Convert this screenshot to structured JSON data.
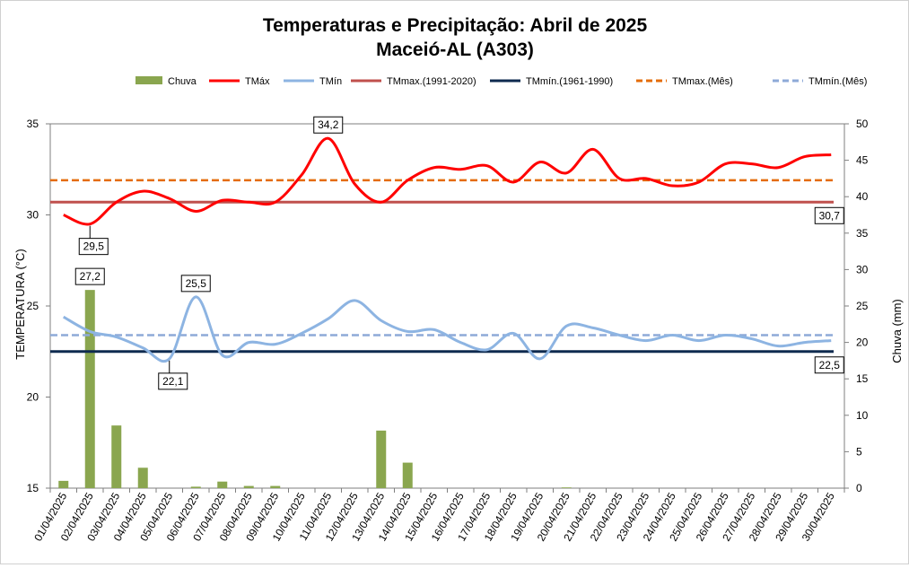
{
  "chart_data": {
    "type": "bar+line",
    "title": "Temperaturas e Precipitação: Abril de 2025",
    "subtitle": "Maceió-AL (A303)",
    "ylabel": "TEMPERATURA (°C)",
    "y2label": "Chuva (mm)",
    "ylim": [
      15,
      35
    ],
    "y_ticks": [
      "15",
      "20",
      "25",
      "30",
      "35"
    ],
    "y2lim": [
      0,
      50
    ],
    "y2_ticks": [
      "0",
      "5",
      "10",
      "15",
      "20",
      "25",
      "30",
      "35",
      "40",
      "45",
      "50"
    ],
    "grid": false,
    "legend_position": "top",
    "categories": [
      "01/04/2025",
      "02/04/2025",
      "03/04/2025",
      "04/04/2025",
      "05/04/2025",
      "06/04/2025",
      "07/04/2025",
      "08/04/2025",
      "09/04/2025",
      "10/04/2025",
      "11/04/2025",
      "12/04/2025",
      "13/04/2025",
      "14/04/2025",
      "15/04/2025",
      "16/04/2025",
      "17/04/2025",
      "18/04/2025",
      "19/04/2025",
      "20/04/2025",
      "21/04/2025",
      "22/04/2025",
      "23/04/2025",
      "24/04/2025",
      "25/04/2025",
      "26/04/2025",
      "27/04/2025",
      "28/04/2025",
      "29/04/2025",
      "30/04/2025"
    ],
    "series": [
      {
        "name": "Chuva",
        "type": "bar",
        "axis": "right",
        "color": "#8aa64f",
        "values": [
          1.0,
          27.2,
          8.6,
          2.8,
          0,
          0.2,
          0.9,
          0.3,
          0.3,
          0,
          0,
          0,
          7.9,
          3.5,
          0,
          0,
          0,
          0,
          0,
          0.1,
          0,
          0,
          0,
          0,
          0,
          0,
          0,
          0,
          0,
          0
        ]
      },
      {
        "name": "TMáx",
        "type": "line",
        "axis": "left",
        "color": "#ff0000",
        "values": [
          30.0,
          29.5,
          30.7,
          31.3,
          30.9,
          30.2,
          30.8,
          30.7,
          30.7,
          32.2,
          34.2,
          31.7,
          30.7,
          31.9,
          32.6,
          32.5,
          32.7,
          31.8,
          32.9,
          32.3,
          33.6,
          32.0,
          32.0,
          31.6,
          31.8,
          32.8,
          32.8,
          32.6,
          33.2,
          33.3
        ]
      },
      {
        "name": "TMín",
        "type": "line",
        "axis": "left",
        "color": "#8db4e2",
        "values": [
          24.4,
          23.6,
          23.3,
          22.7,
          22.1,
          25.5,
          22.3,
          23.0,
          22.9,
          23.5,
          24.3,
          25.3,
          24.2,
          23.6,
          23.7,
          23.0,
          22.6,
          23.5,
          22.1,
          23.9,
          23.8,
          23.4,
          23.1,
          23.4,
          23.1,
          23.4,
          23.2,
          22.8,
          23.0,
          23.1
        ]
      },
      {
        "name": "TMmax.(1991-2020)",
        "type": "hline",
        "axis": "left",
        "color": "#c0504d",
        "value": 30.7
      },
      {
        "name": "TMmín.(1961-1990)",
        "type": "hline",
        "axis": "left",
        "color": "#0e2a4f",
        "value": 22.5
      },
      {
        "name": "TMmax.(Mês)",
        "type": "hline-dashed",
        "axis": "left",
        "color": "#e46c0a",
        "value": 31.9
      },
      {
        "name": "TMmín.(Mês)",
        "type": "hline-dashed",
        "axis": "left",
        "color": "#8eaad8",
        "value": 23.4
      }
    ],
    "annotations": [
      {
        "text": "34,2",
        "series": "TMáx",
        "index": 10,
        "placement": "above"
      },
      {
        "text": "29,5",
        "series": "TMáx",
        "index": 1,
        "placement": "below"
      },
      {
        "text": "30,7",
        "series": "TMmax.(1991-2020)",
        "index": 29,
        "placement": "below-right"
      },
      {
        "text": "27,2",
        "series": "Chuva",
        "index": 1,
        "placement": "above"
      },
      {
        "text": "25,5",
        "series": "TMín",
        "index": 5,
        "placement": "above"
      },
      {
        "text": "22,1",
        "series": "TMín",
        "index": 4,
        "placement": "below"
      },
      {
        "text": "22,5",
        "series": "TMmín.(1961-1990)",
        "index": 29,
        "placement": "below-right"
      }
    ]
  }
}
